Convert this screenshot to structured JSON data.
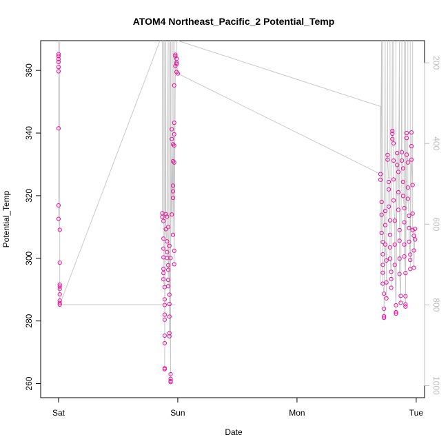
{
  "chart_data": {
    "type": "scatter",
    "title": "ATOM4 Northeast_Pacific_2 Potential_Temp",
    "xlabel": "Date",
    "ylabel": "Potential_Temp",
    "x_ticks": [
      {
        "label": "Sat",
        "value": 0
      },
      {
        "label": "Sun",
        "value": 1
      },
      {
        "label": "Mon",
        "value": 2
      },
      {
        "label": "Tue",
        "value": 3
      }
    ],
    "xlim": [
      -0.15,
      3.07
    ],
    "ylim": [
      255.5,
      369.5
    ],
    "y_ticks": [
      260,
      280,
      300,
      320,
      340,
      360
    ],
    "y2lim": [
      1030,
      145
    ],
    "y2_ticks": [
      200,
      400,
      600,
      800,
      1000
    ],
    "grid": false,
    "colors": {
      "points": "#e8119b",
      "line": "#c8c8c8",
      "axis": "#000000",
      "right_axis": "#bdbdbd"
    },
    "series": [
      {
        "values": [
          [
            0.0,
            365.2
          ],
          [
            0.0,
            364.6
          ],
          [
            0.0,
            363.6
          ],
          [
            0.0,
            362.7
          ],
          [
            0.0,
            361.1
          ],
          [
            0.0,
            359.7
          ],
          [
            0.0,
            341.5
          ],
          [
            0.0,
            316.9
          ],
          [
            0.0,
            312.6
          ],
          [
            0.01,
            309.1
          ],
          [
            0.01,
            298.6
          ],
          [
            0.01,
            291.6
          ],
          [
            0.01,
            291.0
          ],
          [
            0.01,
            290.2
          ],
          [
            0.01,
            288.5
          ],
          [
            0.01,
            286.5
          ],
          [
            0.01,
            285.7
          ],
          [
            0.01,
            285.2
          ],
          [
            0.87,
            314.4
          ],
          [
            0.87,
            313.2
          ],
          [
            0.88,
            311.9
          ],
          [
            0.88,
            306.3
          ],
          [
            0.88,
            303.1
          ],
          [
            0.88,
            300.3
          ],
          [
            0.88,
            296.6
          ],
          [
            0.88,
            295.3
          ],
          [
            0.88,
            293.3
          ],
          [
            0.89,
            290.8
          ],
          [
            0.89,
            286.9
          ],
          [
            0.89,
            285.1
          ],
          [
            0.89,
            282.0
          ],
          [
            0.89,
            280.4
          ],
          [
            0.89,
            275.3
          ],
          [
            0.89,
            272.9
          ],
          [
            0.89,
            264.6
          ],
          [
            0.89,
            264.9
          ],
          [
            0.9,
            314.1
          ],
          [
            0.9,
            309.3
          ],
          [
            0.91,
            305.4
          ],
          [
            0.91,
            302.0
          ],
          [
            0.91,
            300.1
          ],
          [
            0.92,
            297.8
          ],
          [
            0.92,
            296.3
          ],
          [
            0.92,
            293.1
          ],
          [
            0.92,
            291.1
          ],
          [
            0.93,
            288.4
          ],
          [
            0.93,
            285.4
          ],
          [
            0.93,
            281.4
          ],
          [
            0.93,
            276.1
          ],
          [
            0.93,
            275.1
          ],
          [
            0.94,
            263.0
          ],
          [
            0.94,
            261.5
          ],
          [
            0.94,
            260.8
          ],
          [
            0.94,
            260.5
          ],
          [
            0.95,
            341.2
          ],
          [
            0.95,
            338.1
          ],
          [
            0.96,
            336.4
          ],
          [
            0.96,
            331.0
          ],
          [
            0.96,
            323.2
          ],
          [
            0.96,
            321.4
          ],
          [
            0.96,
            319.3
          ],
          [
            0.97,
            343.3
          ],
          [
            0.97,
            339.6
          ],
          [
            0.97,
            336.0
          ],
          [
            0.97,
            330.6
          ],
          [
            0.97,
            355.2
          ],
          [
            0.98,
            365.0
          ],
          [
            0.98,
            364.5
          ],
          [
            0.99,
            363.7
          ],
          [
            0.99,
            362.5
          ],
          [
            0.99,
            359.5
          ],
          [
            1.0,
            359.0
          ],
          [
            0.91,
            313.3
          ],
          [
            0.92,
            310.0
          ],
          [
            0.93,
            304.0
          ],
          [
            0.94,
            300.1
          ],
          [
            0.95,
            314.0
          ],
          [
            0.96,
            307.5
          ],
          [
            0.97,
            302.4
          ],
          [
            0.97,
            298.1
          ],
          [
            0.98,
            361.4
          ],
          [
            0.99,
            362.1
          ],
          [
            2.7,
            326.9
          ],
          [
            2.7,
            325.1
          ],
          [
            2.71,
            318.0
          ],
          [
            2.71,
            313.9
          ],
          [
            2.71,
            308.1
          ],
          [
            2.72,
            305.2
          ],
          [
            2.72,
            301.3
          ],
          [
            2.72,
            297.9
          ],
          [
            2.72,
            295.4
          ],
          [
            2.72,
            291.9
          ],
          [
            2.73,
            288.7
          ],
          [
            2.73,
            283.9
          ],
          [
            2.73,
            281.5
          ],
          [
            2.73,
            281.0
          ],
          [
            2.74,
            315.1
          ],
          [
            2.74,
            310.6
          ],
          [
            2.74,
            304.4
          ],
          [
            2.75,
            299.3
          ],
          [
            2.75,
            292.3
          ],
          [
            2.75,
            287.2
          ],
          [
            2.76,
            333.0
          ],
          [
            2.76,
            331.5
          ],
          [
            2.77,
            324.4
          ],
          [
            2.77,
            322.0
          ],
          [
            2.77,
            316.5
          ],
          [
            2.78,
            312.1
          ],
          [
            2.78,
            307.5
          ],
          [
            2.78,
            303.5
          ],
          [
            2.78,
            299.9
          ],
          [
            2.79,
            295.7
          ],
          [
            2.79,
            293.4
          ],
          [
            2.79,
            290.6
          ],
          [
            2.8,
            340.7
          ],
          [
            2.8,
            339.8
          ],
          [
            2.8,
            338.1
          ],
          [
            2.81,
            336.7
          ],
          [
            2.81,
            331.2
          ],
          [
            2.81,
            325.2
          ],
          [
            2.81,
            318.5
          ],
          [
            2.82,
            312.0
          ],
          [
            2.82,
            304.4
          ],
          [
            2.82,
            297.9
          ],
          [
            2.83,
            285.0
          ],
          [
            2.83,
            282.8
          ],
          [
            2.83,
            282.3
          ],
          [
            2.84,
            333.6
          ],
          [
            2.84,
            329.8
          ],
          [
            2.85,
            327.6
          ],
          [
            2.85,
            321.1
          ],
          [
            2.85,
            315.5
          ],
          [
            2.86,
            309.0
          ],
          [
            2.86,
            305.6
          ],
          [
            2.86,
            299.9
          ],
          [
            2.86,
            295.0
          ],
          [
            2.87,
            288.0
          ],
          [
            2.87,
            285.8
          ],
          [
            2.88,
            333.9
          ],
          [
            2.88,
            331.2
          ],
          [
            2.89,
            328.7
          ],
          [
            2.89,
            324.4
          ],
          [
            2.89,
            319.9
          ],
          [
            2.9,
            316.0
          ],
          [
            2.9,
            311.5
          ],
          [
            2.9,
            304.4
          ],
          [
            2.9,
            300.6
          ],
          [
            2.91,
            295.3
          ],
          [
            2.91,
            287.9
          ],
          [
            2.91,
            285.3
          ],
          [
            2.91,
            284.6
          ],
          [
            2.92,
            340.0
          ],
          [
            2.92,
            338.4
          ],
          [
            2.92,
            333.1
          ],
          [
            2.93,
            330.6
          ],
          [
            2.93,
            322.6
          ],
          [
            2.93,
            319.0
          ],
          [
            2.94,
            313.6
          ],
          [
            2.94,
            309.7
          ],
          [
            2.94,
            305.3
          ],
          [
            2.95,
            301.2
          ],
          [
            2.95,
            299.5
          ],
          [
            2.95,
            296.6
          ],
          [
            2.96,
            340.2
          ],
          [
            2.96,
            335.8
          ],
          [
            2.96,
            331.5
          ],
          [
            2.97,
            323.4
          ],
          [
            2.97,
            314.3
          ],
          [
            2.97,
            309.0
          ],
          [
            2.98,
            307.2
          ],
          [
            2.98,
            302.5
          ],
          [
            2.98,
            297.0
          ],
          [
            2.99,
            309.4
          ],
          [
            2.99,
            306.0
          ]
        ]
      }
    ]
  }
}
